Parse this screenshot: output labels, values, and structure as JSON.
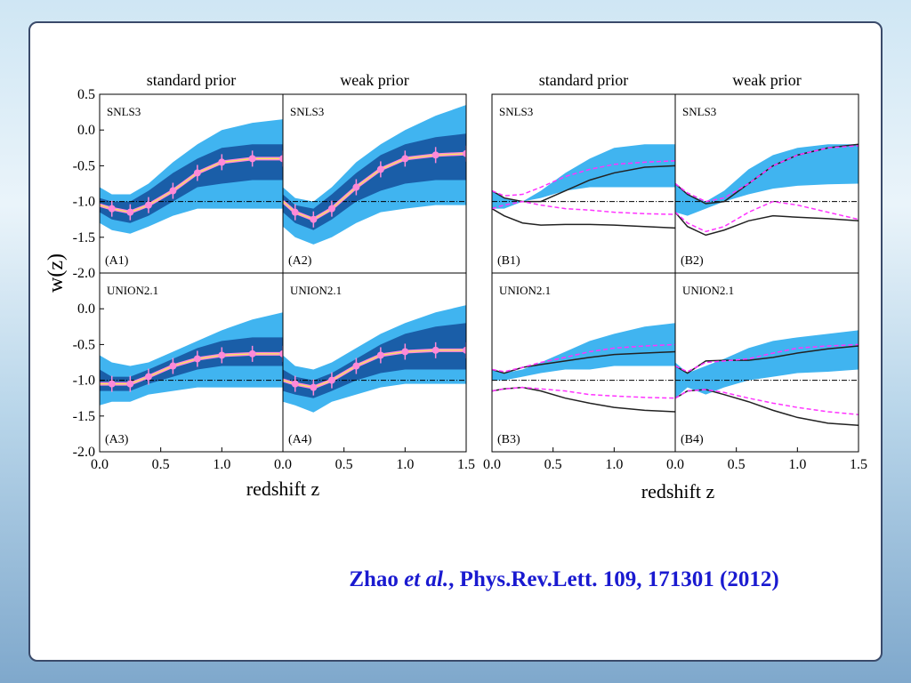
{
  "figure": {
    "column_titles": [
      "standard prior",
      "weak prior",
      "standard prior",
      "weak prior"
    ],
    "ylabel": "w(z)",
    "xlabels": [
      "redshift z",
      "redshift z"
    ]
  },
  "citation": {
    "author": "Zhao",
    "etal": "et al.",
    "rest": ", Phys.Rev.Lett. 109, 171301 (2012)"
  },
  "chart_data": [
    {
      "type": "line",
      "label": "SNLS3",
      "tag": "(A1)",
      "x": [
        0,
        0.1,
        0.25,
        0.4,
        0.6,
        0.8,
        1.0,
        1.25,
        1.5
      ],
      "xlim": [
        0,
        1.5
      ],
      "ylim": [
        -2,
        0.5
      ],
      "xticks": [],
      "yticks": [
        0.5,
        {
          "value": 0,
          "label": "0.0"
        },
        -0.5,
        {
          "value": -1,
          "label": "-1.0"
        },
        -1.5,
        {
          "value": -2,
          "label": "-2.0"
        }
      ],
      "refline": -1,
      "bands": [
        {
          "color": "#40b4f0",
          "upper": [
            -0.8,
            -0.9,
            -0.9,
            -0.75,
            -0.45,
            -0.2,
            0.0,
            0.1,
            0.15
          ],
          "lower": [
            -1.3,
            -1.4,
            -1.45,
            -1.35,
            -1.2,
            -1.1,
            -1.1,
            -1.1,
            -1.1
          ]
        },
        {
          "color": "#1a5ea8",
          "upper": [
            -0.95,
            -1.0,
            -1.0,
            -0.85,
            -0.6,
            -0.4,
            -0.25,
            -0.2,
            -0.2
          ],
          "lower": [
            -1.15,
            -1.25,
            -1.3,
            -1.2,
            -1.0,
            -0.8,
            -0.75,
            -0.7,
            -0.7
          ]
        }
      ],
      "series": [
        {
          "color": "#ff8ad8",
          "dash": false,
          "markers": true,
          "values": [
            -1.05,
            -1.1,
            -1.15,
            -1.05,
            -0.85,
            -0.6,
            -0.45,
            -0.4,
            -0.4
          ]
        }
      ]
    },
    {
      "type": "line",
      "label": "SNLS3",
      "tag": "(A2)",
      "x": [
        0,
        0.1,
        0.25,
        0.4,
        0.6,
        0.8,
        1.0,
        1.25,
        1.5
      ],
      "xlim": [
        0,
        1.5
      ],
      "ylim": [
        -2,
        0.5
      ],
      "xticks": [],
      "yticks": [],
      "refline": -1,
      "bands": [
        {
          "color": "#40b4f0",
          "upper": [
            -0.8,
            -0.95,
            -1.0,
            -0.8,
            -0.45,
            -0.2,
            0.0,
            0.2,
            0.35
          ],
          "lower": [
            -1.35,
            -1.5,
            -1.6,
            -1.5,
            -1.3,
            -1.15,
            -1.1,
            -1.05,
            -1.05
          ]
        },
        {
          "color": "#1a5ea8",
          "upper": [
            -0.9,
            -1.05,
            -1.1,
            -0.9,
            -0.6,
            -0.35,
            -0.2,
            -0.1,
            -0.05
          ],
          "lower": [
            -1.15,
            -1.3,
            -1.4,
            -1.25,
            -1.0,
            -0.85,
            -0.75,
            -0.7,
            -0.7
          ]
        }
      ],
      "series": [
        {
          "color": "#ff8ad8",
          "dash": false,
          "markers": true,
          "values": [
            -1.0,
            -1.15,
            -1.25,
            -1.1,
            -0.8,
            -0.55,
            -0.4,
            -0.35,
            -0.33
          ]
        }
      ]
    },
    {
      "type": "line",
      "label": "UNION2.1",
      "tag": "(A3)",
      "x": [
        0,
        0.1,
        0.25,
        0.4,
        0.6,
        0.8,
        1.0,
        1.25,
        1.5
      ],
      "xlim": [
        0,
        1.5
      ],
      "ylim": [
        -2,
        0.5
      ],
      "xticks": [
        {
          "value": 0,
          "label": "0.0"
        },
        0.5,
        {
          "value": 1,
          "label": "1.0"
        }
      ],
      "yticks": [
        {
          "value": 0,
          "label": "0.0"
        },
        -0.5,
        {
          "value": -1,
          "label": "-1.0"
        },
        -1.5,
        {
          "value": -2,
          "label": "-2.0"
        }
      ],
      "refline": -1,
      "bands": [
        {
          "color": "#40b4f0",
          "upper": [
            -0.65,
            -0.75,
            -0.8,
            -0.75,
            -0.6,
            -0.45,
            -0.3,
            -0.15,
            -0.05
          ],
          "lower": [
            -1.35,
            -1.3,
            -1.3,
            -1.2,
            -1.15,
            -1.1,
            -1.1,
            -1.1,
            -1.1
          ]
        },
        {
          "color": "#1a5ea8",
          "upper": [
            -0.85,
            -0.95,
            -0.95,
            -0.85,
            -0.7,
            -0.55,
            -0.45,
            -0.4,
            -0.4
          ],
          "lower": [
            -1.15,
            -1.15,
            -1.15,
            -1.05,
            -0.95,
            -0.85,
            -0.8,
            -0.8,
            -0.8
          ]
        }
      ],
      "series": [
        {
          "color": "#ff8ad8",
          "dash": false,
          "markers": true,
          "values": [
            -1.05,
            -1.05,
            -1.05,
            -0.95,
            -0.8,
            -0.7,
            -0.65,
            -0.63,
            -0.63
          ]
        }
      ]
    },
    {
      "type": "line",
      "label": "UNION2.1",
      "tag": "(A4)",
      "x": [
        0,
        0.1,
        0.25,
        0.4,
        0.6,
        0.8,
        1.0,
        1.25,
        1.5
      ],
      "xlim": [
        0,
        1.5
      ],
      "ylim": [
        -2,
        0.5
      ],
      "xticks": [
        {
          "value": 0,
          "label": "0.0"
        },
        0.5,
        {
          "value": 1,
          "label": "1.0"
        },
        1.5
      ],
      "yticks": [],
      "refline": -1,
      "bands": [
        {
          "color": "#40b4f0",
          "upper": [
            -0.65,
            -0.8,
            -0.85,
            -0.75,
            -0.55,
            -0.35,
            -0.2,
            -0.05,
            0.05
          ],
          "lower": [
            -1.3,
            -1.35,
            -1.45,
            -1.3,
            -1.2,
            -1.1,
            -1.05,
            -1.05,
            -1.05
          ]
        },
        {
          "color": "#1a5ea8",
          "upper": [
            -0.85,
            -0.95,
            -1.0,
            -0.9,
            -0.7,
            -0.5,
            -0.35,
            -0.25,
            -0.2
          ],
          "lower": [
            -1.15,
            -1.2,
            -1.25,
            -1.15,
            -1.0,
            -0.9,
            -0.85,
            -0.85,
            -0.85
          ]
        }
      ],
      "series": [
        {
          "color": "#ff8ad8",
          "dash": false,
          "markers": true,
          "values": [
            -1.0,
            -1.05,
            -1.1,
            -1.0,
            -0.8,
            -0.65,
            -0.6,
            -0.58,
            -0.58
          ]
        }
      ]
    },
    {
      "type": "line",
      "label": "SNLS3",
      "tag": "(B1)",
      "x": [
        0,
        0.1,
        0.25,
        0.4,
        0.6,
        0.8,
        1.0,
        1.25,
        1.5
      ],
      "xlim": [
        0,
        1.5
      ],
      "ylim": [
        -2,
        0.5
      ],
      "xticks": [],
      "yticks": [],
      "refline": -1,
      "bands": [
        {
          "color": "#40b4f0",
          "upper": [
            -0.85,
            -0.95,
            -1.0,
            -0.85,
            -0.6,
            -0.4,
            -0.25,
            -0.2,
            -0.2
          ],
          "lower": [
            -1.1,
            -1.1,
            -1.0,
            -0.95,
            -0.85,
            -0.8,
            -0.8,
            -0.8,
            -0.8
          ]
        }
      ],
      "series": [
        {
          "color": "#222222",
          "dash": false,
          "markers": false,
          "values": [
            -0.85,
            -0.95,
            -1.0,
            -1.0,
            -0.85,
            -0.7,
            -0.6,
            -0.52,
            -0.5
          ]
        },
        {
          "color": "#222222",
          "dash": false,
          "markers": false,
          "values": [
            -1.1,
            -1.2,
            -1.3,
            -1.33,
            -1.32,
            -1.32,
            -1.33,
            -1.35,
            -1.37
          ]
        },
        {
          "color": "#ff33ff",
          "dash": true,
          "markers": false,
          "values": [
            -0.85,
            -0.92,
            -0.9,
            -0.8,
            -0.65,
            -0.55,
            -0.48,
            -0.45,
            -0.43
          ]
        },
        {
          "color": "#ff33ff",
          "dash": true,
          "markers": false,
          "values": [
            -1.1,
            -1.05,
            -1.0,
            -1.05,
            -1.1,
            -1.12,
            -1.15,
            -1.17,
            -1.18
          ]
        }
      ]
    },
    {
      "type": "line",
      "label": "SNLS3",
      "tag": "(B2)",
      "x": [
        0,
        0.1,
        0.25,
        0.4,
        0.6,
        0.8,
        1.0,
        1.25,
        1.5
      ],
      "xlim": [
        0,
        1.5
      ],
      "ylim": [
        -2,
        0.5
      ],
      "xticks": [],
      "yticks": [],
      "refline": -1,
      "bands": [
        {
          "color": "#40b4f0",
          "upper": [
            -0.75,
            -0.9,
            -1.0,
            -0.85,
            -0.55,
            -0.35,
            -0.25,
            -0.2,
            -0.2
          ],
          "lower": [
            -1.15,
            -1.2,
            -1.1,
            -1.0,
            -0.9,
            -0.82,
            -0.78,
            -0.76,
            -0.75
          ]
        }
      ],
      "series": [
        {
          "color": "#222222",
          "dash": false,
          "markers": false,
          "values": [
            -0.75,
            -0.9,
            -1.03,
            -1.0,
            -0.75,
            -0.5,
            -0.35,
            -0.25,
            -0.2
          ]
        },
        {
          "color": "#222222",
          "dash": false,
          "markers": false,
          "values": [
            -1.15,
            -1.35,
            -1.47,
            -1.4,
            -1.27,
            -1.2,
            -1.22,
            -1.24,
            -1.27
          ]
        },
        {
          "color": "#ff33ff",
          "dash": true,
          "markers": false,
          "values": [
            -0.75,
            -0.88,
            -1.0,
            -0.95,
            -0.75,
            -0.5,
            -0.35,
            -0.25,
            -0.22
          ]
        },
        {
          "color": "#ff33ff",
          "dash": true,
          "markers": false,
          "values": [
            -1.15,
            -1.3,
            -1.42,
            -1.35,
            -1.15,
            -1.0,
            -1.05,
            -1.15,
            -1.25
          ]
        }
      ]
    },
    {
      "type": "line",
      "label": "UNION2.1",
      "tag": "(B3)",
      "x": [
        0,
        0.1,
        0.25,
        0.4,
        0.6,
        0.8,
        1.0,
        1.25,
        1.5
      ],
      "xlim": [
        0,
        1.5
      ],
      "ylim": [
        -2,
        0.5
      ],
      "xticks": [
        {
          "value": 0,
          "label": "0.0"
        },
        0.5,
        {
          "value": 1,
          "label": "1.0"
        }
      ],
      "yticks": [],
      "refline": -1,
      "bands": [
        {
          "color": "#40b4f0",
          "upper": [
            -0.85,
            -0.9,
            -0.85,
            -0.75,
            -0.6,
            -0.45,
            -0.35,
            -0.25,
            -0.2
          ],
          "lower": [
            -1.0,
            -1.0,
            -0.95,
            -0.9,
            -0.85,
            -0.85,
            -0.8,
            -0.8,
            -0.8
          ]
        }
      ],
      "series": [
        {
          "color": "#222222",
          "dash": false,
          "markers": false,
          "values": [
            -0.85,
            -0.9,
            -0.82,
            -0.78,
            -0.73,
            -0.68,
            -0.64,
            -0.62,
            -0.6
          ]
        },
        {
          "color": "#222222",
          "dash": false,
          "markers": false,
          "values": [
            -1.15,
            -1.12,
            -1.1,
            -1.15,
            -1.25,
            -1.32,
            -1.38,
            -1.42,
            -1.44
          ]
        },
        {
          "color": "#ff33ff",
          "dash": true,
          "markers": false,
          "values": [
            -0.85,
            -0.88,
            -0.82,
            -0.75,
            -0.68,
            -0.6,
            -0.55,
            -0.52,
            -0.5
          ]
        },
        {
          "color": "#ff33ff",
          "dash": true,
          "markers": false,
          "values": [
            -1.15,
            -1.12,
            -1.1,
            -1.12,
            -1.15,
            -1.2,
            -1.22,
            -1.24,
            -1.25
          ]
        }
      ]
    },
    {
      "type": "line",
      "label": "UNION2.1",
      "tag": "(B4)",
      "x": [
        0,
        0.1,
        0.25,
        0.4,
        0.6,
        0.8,
        1.0,
        1.25,
        1.5
      ],
      "xlim": [
        0,
        1.5
      ],
      "ylim": [
        -2,
        0.5
      ],
      "xticks": [
        {
          "value": 0,
          "label": "0.0"
        },
        0.5,
        {
          "value": 1,
          "label": "1.0"
        },
        1.5
      ],
      "yticks": [],
      "refline": -1,
      "bands": [
        {
          "color": "#40b4f0",
          "upper": [
            -0.75,
            -0.9,
            -0.8,
            -0.7,
            -0.55,
            -0.45,
            -0.4,
            -0.35,
            -0.3
          ],
          "lower": [
            -1.25,
            -1.1,
            -1.2,
            -1.1,
            -1.0,
            -0.95,
            -0.9,
            -0.88,
            -0.85
          ]
        }
      ],
      "series": [
        {
          "color": "#222222",
          "dash": false,
          "markers": false,
          "values": [
            -0.8,
            -0.9,
            -0.73,
            -0.72,
            -0.72,
            -0.68,
            -0.62,
            -0.56,
            -0.52
          ]
        },
        {
          "color": "#222222",
          "dash": false,
          "markers": false,
          "values": [
            -1.25,
            -1.15,
            -1.13,
            -1.2,
            -1.3,
            -1.42,
            -1.52,
            -1.6,
            -1.63
          ]
        },
        {
          "color": "#ff33ff",
          "dash": true,
          "markers": false,
          "values": [
            -0.8,
            -0.88,
            -0.75,
            -0.73,
            -0.7,
            -0.62,
            -0.55,
            -0.52,
            -0.5
          ]
        },
        {
          "color": "#ff33ff",
          "dash": true,
          "markers": false,
          "values": [
            -1.25,
            -1.15,
            -1.13,
            -1.17,
            -1.25,
            -1.32,
            -1.38,
            -1.44,
            -1.48
          ]
        }
      ]
    }
  ]
}
